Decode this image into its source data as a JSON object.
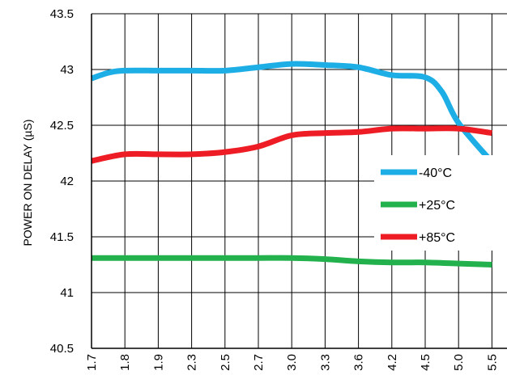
{
  "chart_data": {
    "type": "line",
    "title": "",
    "xlabel": "",
    "ylabel": "POWER ON DELAY (µS)",
    "categories": [
      "1.7",
      "1.8",
      "1.9",
      "2.3",
      "2.5",
      "2.7",
      "3.0",
      "3.3",
      "3.6",
      "4.2",
      "4.5",
      "5.0",
      "5.5"
    ],
    "ylim": [
      40.5,
      43.5
    ],
    "yticks": [
      "40.5",
      "41",
      "41.5",
      "42",
      "42.5",
      "43",
      "43.5"
    ],
    "grid": true,
    "legend_position": "right",
    "series": [
      {
        "name": "-40°C",
        "color": "#1eaee6",
        "points": [
          [
            0,
            42.92
          ],
          [
            0.5,
            42.97
          ],
          [
            1,
            42.99
          ],
          [
            2,
            42.99
          ],
          [
            3,
            42.99
          ],
          [
            4,
            42.99
          ],
          [
            5,
            43.02
          ],
          [
            6,
            43.05
          ],
          [
            7,
            43.04
          ],
          [
            8,
            43.02
          ],
          [
            9,
            42.95
          ],
          [
            10,
            42.93
          ],
          [
            10.5,
            42.8
          ],
          [
            11,
            42.52
          ],
          [
            12,
            42.17
          ]
        ]
      },
      {
        "name": "+25°C",
        "color": "#22b14c",
        "points": [
          [
            0,
            41.31
          ],
          [
            1,
            41.31
          ],
          [
            2,
            41.31
          ],
          [
            3,
            41.31
          ],
          [
            4,
            41.31
          ],
          [
            5,
            41.31
          ],
          [
            6,
            41.31
          ],
          [
            7,
            41.3
          ],
          [
            8,
            41.28
          ],
          [
            9,
            41.27
          ],
          [
            10,
            41.27
          ],
          [
            11,
            41.26
          ],
          [
            12,
            41.25
          ]
        ]
      },
      {
        "name": "+85°C",
        "color": "#ee1c24",
        "points": [
          [
            0,
            42.18
          ],
          [
            1,
            42.24
          ],
          [
            2,
            42.24
          ],
          [
            3,
            42.24
          ],
          [
            4,
            42.26
          ],
          [
            5,
            42.31
          ],
          [
            6,
            42.41
          ],
          [
            7,
            42.43
          ],
          [
            8,
            42.44
          ],
          [
            9,
            42.47
          ],
          [
            10,
            42.47
          ],
          [
            11,
            42.47
          ],
          [
            12,
            42.43
          ]
        ]
      }
    ]
  }
}
